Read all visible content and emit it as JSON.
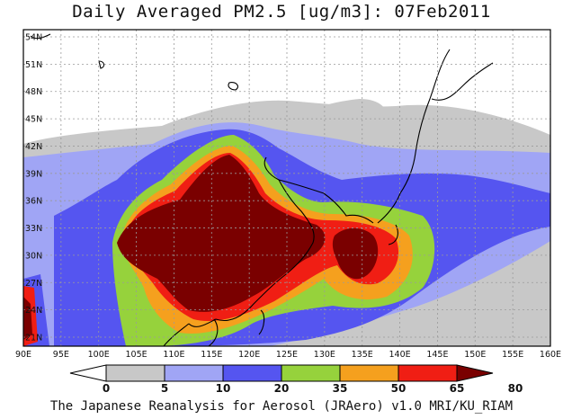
{
  "title": "Daily Averaged PM2.5 [ug/m3]: 07Feb2011",
  "footer": "The Japanese Reanalysis for Aerosol (JRAero) v1.0 MRI/KU_RIAM",
  "map": {
    "lon_ticks": [
      "90E",
      "95E",
      "100E",
      "105E",
      "110E",
      "115E",
      "120E",
      "125E",
      "130E",
      "135E",
      "140E",
      "145E",
      "150E",
      "155E",
      "160E"
    ],
    "lat_ticks": [
      "54N",
      "51N",
      "48N",
      "45N",
      "42N",
      "39N",
      "36N",
      "33N",
      "30N",
      "27N",
      "24N",
      "21N"
    ]
  },
  "colorbar": {
    "levels": [
      "0",
      "5",
      "10",
      "20",
      "35",
      "50",
      "65",
      "80"
    ],
    "colors": [
      "#ffffff",
      "#c8c8c8",
      "#a0a5f5",
      "#5555f0",
      "#96d23c",
      "#f5a01e",
      "#f01e14",
      "#7a0000"
    ]
  }
}
